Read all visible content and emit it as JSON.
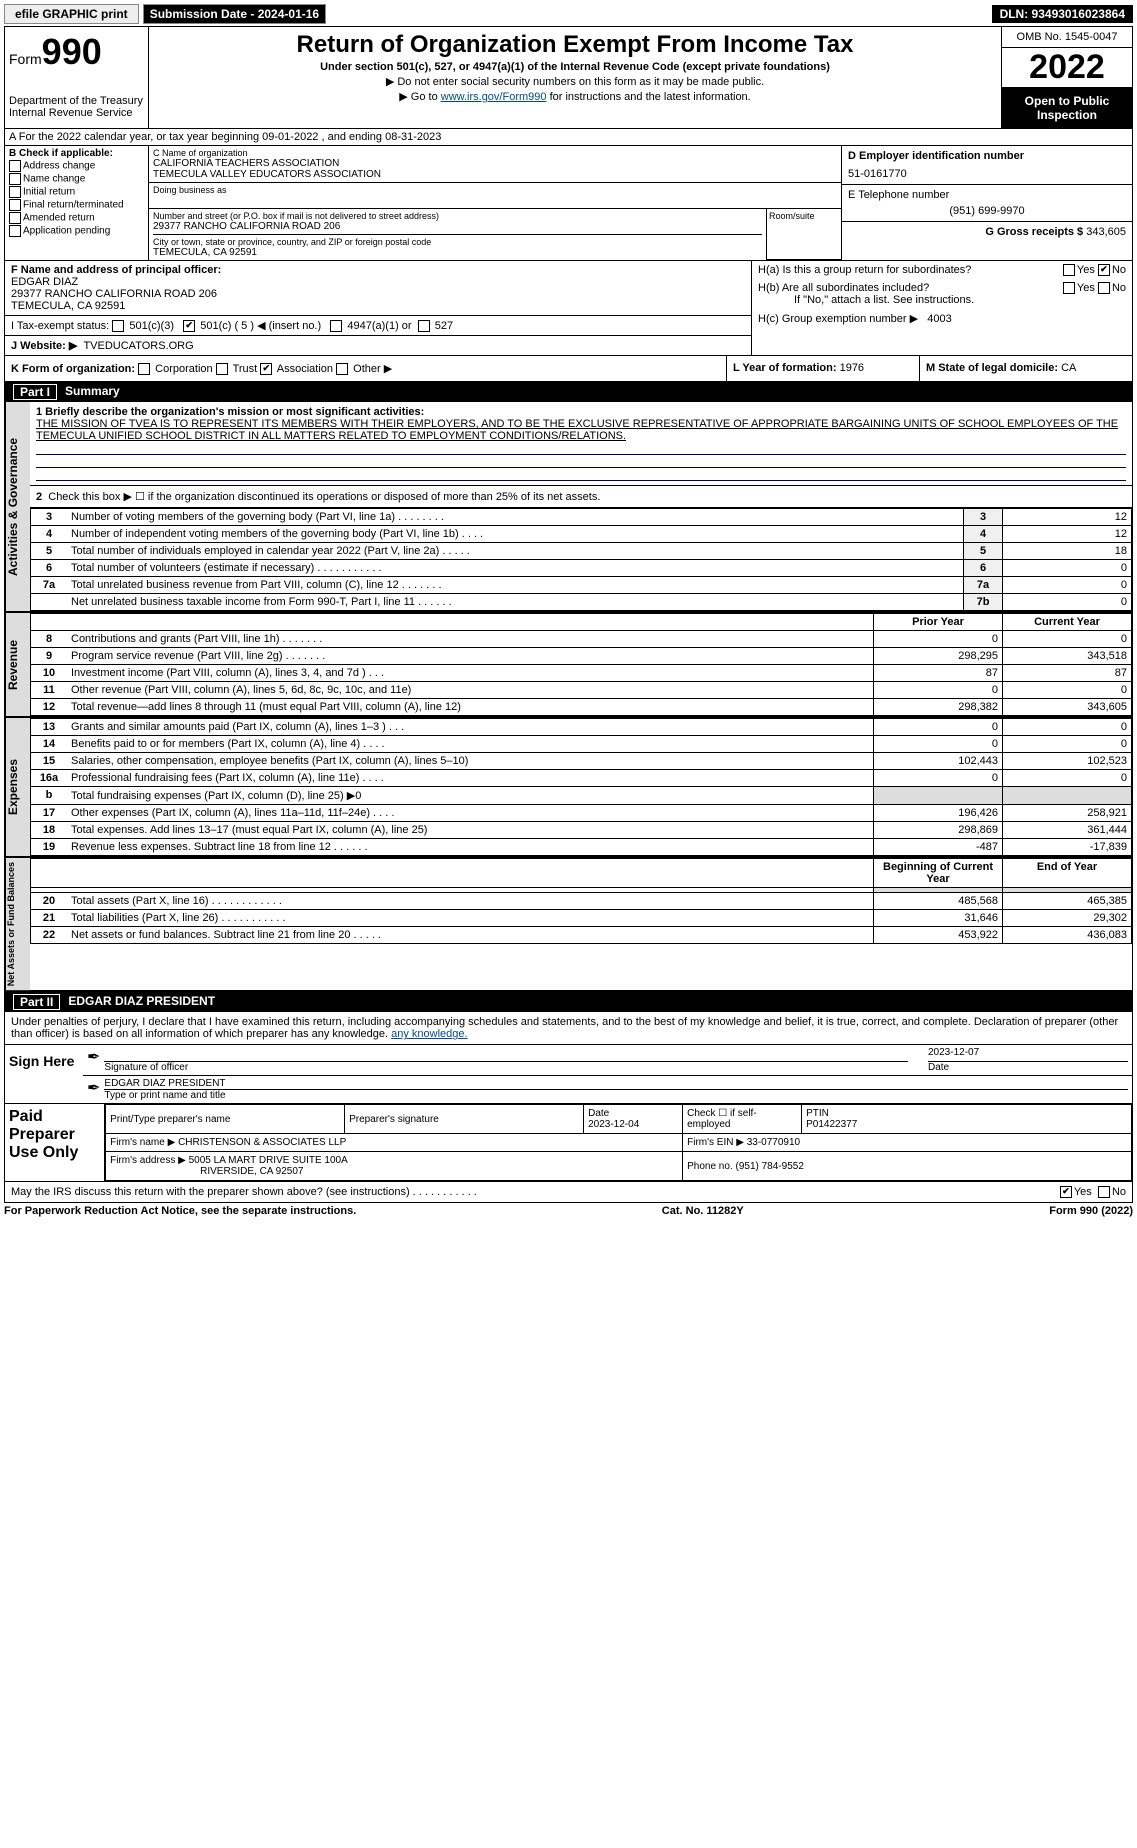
{
  "topbar": {
    "efile": "efile GRAPHIC print",
    "submission_btn": "Submission Date - 2024-01-16",
    "dln": "DLN: 93493016023864"
  },
  "header": {
    "form_label": "Form",
    "form_no": "990",
    "dept": "Department of the Treasury",
    "irs": "Internal Revenue Service",
    "title": "Return of Organization Exempt From Income Tax",
    "sub": "Under section 501(c), 527, or 4947(a)(1) of the Internal Revenue Code (except private foundations)",
    "note1": "▶ Do not enter social security numbers on this form as it may be made public.",
    "note2_pre": "▶ Go to ",
    "note2_link": "www.irs.gov/Form990",
    "note2_post": " for instructions and the latest information.",
    "omb": "OMB No. 1545-0047",
    "year": "2022",
    "open": "Open to Public Inspection"
  },
  "A": "A For the 2022 calendar year, or tax year beginning 09-01-2022    , and ending 08-31-2023",
  "B": {
    "label": "B Check if applicable:",
    "items": [
      "Address change",
      "Name change",
      "Initial return",
      "Final return/terminated",
      "Amended return",
      "Application pending"
    ]
  },
  "C": {
    "name_label": "C Name of organization",
    "name1": "CALIFORNIA TEACHERS ASSOCIATION",
    "name2": "TEMECULA VALLEY EDUCATORS ASSOCIATION",
    "dba_label": "Doing business as",
    "street_label": "Number and street (or P.O. box if mail is not delivered to street address)",
    "street": "29377 RANCHO CALIFORNIA ROAD 206",
    "room_label": "Room/suite",
    "city_label": "City or town, state or province, country, and ZIP or foreign postal code",
    "city": "TEMECULA, CA  92591"
  },
  "D": {
    "label": "D Employer identification number",
    "val": "51-0161770"
  },
  "E": {
    "label": "E Telephone number",
    "val": "(951) 699-9970"
  },
  "G": {
    "label": "G Gross receipts $",
    "val": "343,605"
  },
  "F": {
    "label": "F Name and address of principal officer:",
    "name": "EDGAR DIAZ",
    "addr1": "29377 RANCHO CALIFORNIA ROAD 206",
    "addr2": "TEMECULA, CA  92591"
  },
  "I": {
    "label": "I    Tax-exempt status:",
    "c3": "501(c)(3)",
    "c": "501(c) ( 5 ) ◀ (insert no.)",
    "a1": "4947(a)(1) or",
    "s527": "527"
  },
  "J": {
    "label": "J    Website: ▶",
    "val": "TVEDUCATORS.ORG"
  },
  "H": {
    "a": "H(a)  Is this a group return for subordinates?",
    "b": "H(b)  Are all subordinates included?",
    "bnote": "If \"No,\" attach a list. See instructions.",
    "c": "H(c)  Group exemption number ▶",
    "cval": "4003",
    "yes": "Yes",
    "no": "No"
  },
  "K": "K Form of organization:",
  "Kopts": [
    "Corporation",
    "Trust",
    "Association",
    "Other ▶"
  ],
  "L": {
    "label": "L Year of formation:",
    "val": "1976"
  },
  "M": {
    "label": "M State of legal domicile:",
    "val": "CA"
  },
  "partI": {
    "title": "Part I",
    "name": "Summary",
    "l1_label": "1  Briefly describe the organization's mission or most significant activities:",
    "l1_text": "THE MISSION OF TVEA IS TO REPRESENT ITS MEMBERS WITH THEIR EMPLOYERS, AND TO BE THE EXCLUSIVE REPRESENTATIVE OF APPROPRIATE BARGAINING UNITS OF SCHOOL EMPLOYEES OF THE TEMECULA UNIFIED SCHOOL DISTRICT IN ALL MATTERS RELATED TO EMPLOYMENT CONDITIONS/RELATIONS.",
    "l2": "Check this box ▶ ☐  if the organization discontinued its operations or disposed of more than 25% of its net assets.",
    "rows_gov": [
      {
        "n": "3",
        "d": "Number of voting members of the governing body (Part VI, line 1a)  .    .    .    .    .    .    .    .",
        "box": "3",
        "v": "12"
      },
      {
        "n": "4",
        "d": "Number of independent voting members of the governing body (Part VI, line 1b)   .    .    .    .",
        "box": "4",
        "v": "12"
      },
      {
        "n": "5",
        "d": "Total number of individuals employed in calendar year 2022 (Part V, line 2a)  .    .    .    .    .",
        "box": "5",
        "v": "18"
      },
      {
        "n": "6",
        "d": "Total number of volunteers (estimate if necessary)   .    .    .    .    .    .    .    .    .    .    .",
        "box": "6",
        "v": "0"
      },
      {
        "n": "7a",
        "d": "Total unrelated business revenue from Part VIII, column (C), line 12  .    .    .    .    .    .    .",
        "box": "7a",
        "v": "0"
      },
      {
        "n": "",
        "d": "Net unrelated business taxable income from Form 990-T, Part I, line 11  .    .    .    .    .    .",
        "box": "7b",
        "v": "0"
      }
    ],
    "col_prior": "Prior Year",
    "col_curr": "Current Year",
    "rows_rev": [
      {
        "n": "8",
        "d": "Contributions and grants (Part VIII, line 1h)   .    .    .    .    .    .    .",
        "p": "0",
        "c": "0"
      },
      {
        "n": "9",
        "d": "Program service revenue (Part VIII, line 2g)   .    .    .    .    .    .    .",
        "p": "298,295",
        "c": "343,518"
      },
      {
        "n": "10",
        "d": "Investment income (Part VIII, column (A), lines 3, 4, and 7d )   .    .    .",
        "p": "87",
        "c": "87"
      },
      {
        "n": "11",
        "d": "Other revenue (Part VIII, column (A), lines 5, 6d, 8c, 9c, 10c, and 11e)",
        "p": "0",
        "c": "0"
      },
      {
        "n": "12",
        "d": "Total revenue—add lines 8 through 11 (must equal Part VIII, column (A), line 12)",
        "p": "298,382",
        "c": "343,605"
      }
    ],
    "rows_exp": [
      {
        "n": "13",
        "d": "Grants and similar amounts paid (Part IX, column (A), lines 1–3 )   .    .    .",
        "p": "0",
        "c": "0"
      },
      {
        "n": "14",
        "d": "Benefits paid to or for members (Part IX, column (A), line 4)   .    .    .    .",
        "p": "0",
        "c": "0"
      },
      {
        "n": "15",
        "d": "Salaries, other compensation, employee benefits (Part IX, column (A), lines 5–10)",
        "p": "102,443",
        "c": "102,523"
      },
      {
        "n": "16a",
        "d": "Professional fundraising fees (Part IX, column (A), line 11e)  .    .    .    .",
        "p": "0",
        "c": "0"
      },
      {
        "n": "b",
        "d": "Total fundraising expenses (Part IX, column (D), line 25) ▶0",
        "p": "",
        "c": "",
        "shade": true
      },
      {
        "n": "17",
        "d": "Other expenses (Part IX, column (A), lines 11a–11d, 11f–24e)   .    .    .    .",
        "p": "196,426",
        "c": "258,921"
      },
      {
        "n": "18",
        "d": "Total expenses. Add lines 13–17 (must equal Part IX, column (A), line 25)",
        "p": "298,869",
        "c": "361,444"
      },
      {
        "n": "19",
        "d": "Revenue less expenses. Subtract line 18 from line 12  .    .    .    .    .    .",
        "p": "-487",
        "c": "-17,839"
      }
    ],
    "col_begin": "Beginning of Current Year",
    "col_end": "End of Year",
    "rows_net": [
      {
        "n": "20",
        "d": "Total assets (Part X, line 16)   .    .    .    .    .    .    .    .    .    .    .    .",
        "p": "485,568",
        "c": "465,385"
      },
      {
        "n": "21",
        "d": "Total liabilities (Part X, line 26)   .    .    .    .    .    .    .    .    .    .    .",
        "p": "31,646",
        "c": "29,302"
      },
      {
        "n": "22",
        "d": "Net assets or fund balances. Subtract line 21 from line 20   .    .    .    .    .",
        "p": "453,922",
        "c": "436,083"
      }
    ]
  },
  "sidetabs": {
    "gov": "Activities & Governance",
    "rev": "Revenue",
    "exp": "Expenses",
    "net": "Net Assets or Fund Balances"
  },
  "partII": {
    "title": "Part II",
    "name": "EDGAR DIAZ PRESIDENT",
    "pen": "Under penalties of perjury, I declare that I have examined this return, including accompanying schedules and statements, and to the best of my knowledge and belief, it is true, correct, and complete. Declaration of preparer (other than officer) is based on all information of which preparer has any knowledge.",
    "sign_here": "Sign Here",
    "sig_label": "Signature of officer",
    "date_label": "Date",
    "date": "2023-12-07",
    "name_label": "Type or print name and title",
    "paid": "Paid Preparer Use Only",
    "pt": "Print/Type preparer's name",
    "ps": "Preparer's signature",
    "pd": "Date",
    "pdv": "2023-12-04",
    "chk": "Check ☐ if self-employed",
    "ptin": "PTIN",
    "ptinv": "P01422377",
    "fn": "Firm's name    ▶",
    "fnv": "CHRISTENSON & ASSOCIATES LLP",
    "fein": "Firm's EIN ▶",
    "feinv": "33-0770910",
    "fa": "Firm's address ▶",
    "fav1": "5005 LA MART DRIVE SUITE 100A",
    "fav2": "RIVERSIDE, CA  92507",
    "ph": "Phone no.",
    "phv": "(951) 784-9552",
    "may": "May the IRS discuss this return with the preparer shown above? (see instructions)   .    .    .    .    .    .    .    .    .    .    ."
  },
  "footer": {
    "l": "For Paperwork Reduction Act Notice, see the separate instructions.",
    "m": "Cat. No. 11282Y",
    "r": "Form 990 (2022)"
  }
}
